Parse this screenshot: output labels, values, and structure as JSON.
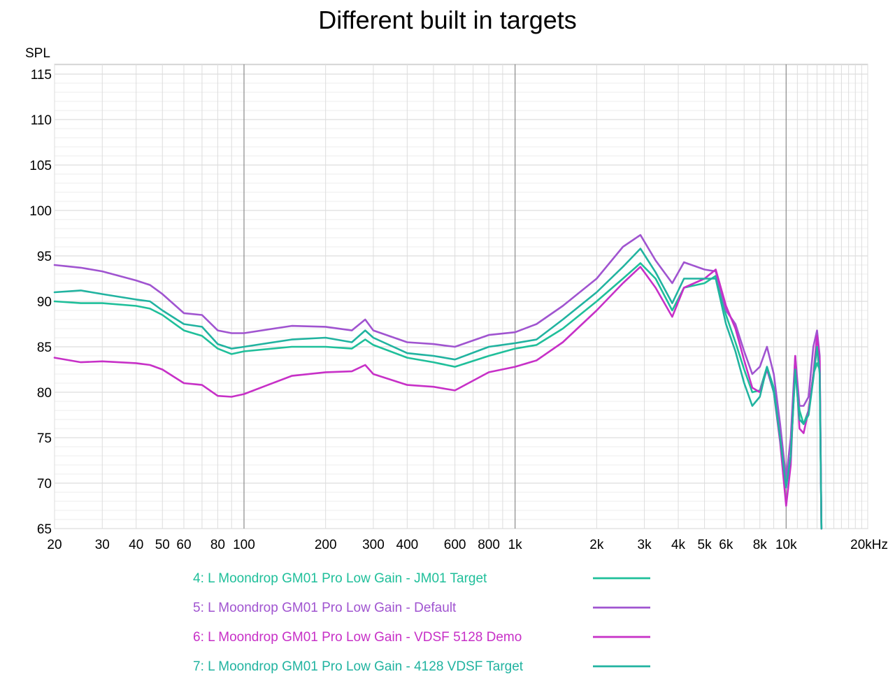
{
  "chart_data": {
    "type": "line",
    "title": "Different built in targets",
    "ylabel": "SPL",
    "xlabel": "",
    "x_scale": "log",
    "xlim": [
      20,
      20000
    ],
    "ylim": [
      65,
      116
    ],
    "grid": true,
    "y_ticks": [
      "115",
      "110",
      "105",
      "100",
      "95",
      "90",
      "85",
      "80",
      "75",
      "70",
      "65"
    ],
    "y_tick_values": [
      115,
      110,
      105,
      100,
      95,
      90,
      85,
      80,
      75,
      70,
      65
    ],
    "x_ticks": [
      "20",
      "30",
      "40",
      "50",
      "60",
      "80",
      "100",
      "200",
      "300",
      "400",
      "600",
      "800",
      "1k",
      "2k",
      "3k",
      "4k",
      "5k",
      "6k",
      "8k",
      "10k",
      "20kHz"
    ],
    "x_tick_values": [
      20,
      30,
      40,
      50,
      60,
      80,
      100,
      200,
      300,
      400,
      600,
      800,
      1000,
      2000,
      3000,
      4000,
      5000,
      6000,
      8000,
      10000,
      20000
    ],
    "legend_position": "bottom",
    "series": [
      {
        "name": "4: L Moondrop GM01 Pro Low Gain - JM01 Target",
        "color": "#1fbf9a",
        "x": [
          20,
          25,
          30,
          40,
          45,
          50,
          60,
          70,
          80,
          90,
          100,
          150,
          200,
          250,
          280,
          300,
          400,
          500,
          600,
          800,
          1000,
          1200,
          1500,
          2000,
          2500,
          2900,
          3300,
          3800,
          4200,
          5000,
          5500,
          6000,
          6500,
          7000,
          7500,
          8000,
          8500,
          9000,
          9500,
          10000,
          10400,
          10800,
          11200,
          11600,
          12100,
          12600,
          13000,
          13300,
          13500
        ],
        "y": [
          90.0,
          89.8,
          89.8,
          89.5,
          89.2,
          88.5,
          86.8,
          86.2,
          84.8,
          84.2,
          84.5,
          85.0,
          85.0,
          84.8,
          85.8,
          85.2,
          83.8,
          83.3,
          82.8,
          84.0,
          84.8,
          85.2,
          87.0,
          90.0,
          92.5,
          94.2,
          92.5,
          89.0,
          91.5,
          92.0,
          92.8,
          88.5,
          85.5,
          82.5,
          80.0,
          80.2,
          82.8,
          80.5,
          76.0,
          70.0,
          73.0,
          82.5,
          78.0,
          76.5,
          78.0,
          82.0,
          83.2,
          82.5,
          65.0
        ]
      },
      {
        "name": "5: L Moondrop GM01 Pro Low Gain - Default",
        "color": "#a054d0",
        "x": [
          20,
          25,
          30,
          40,
          45,
          50,
          60,
          70,
          80,
          90,
          100,
          150,
          200,
          250,
          280,
          300,
          400,
          500,
          600,
          800,
          1000,
          1200,
          1500,
          2000,
          2500,
          2900,
          3300,
          3800,
          4200,
          5000,
          5500,
          6000,
          6500,
          7000,
          7500,
          8000,
          8500,
          9000,
          9500,
          10000,
          10400,
          10800,
          11200,
          11600,
          12100,
          12600,
          13000,
          13300,
          13500
        ],
        "y": [
          94.0,
          93.7,
          93.3,
          92.3,
          91.8,
          90.8,
          88.7,
          88.5,
          86.8,
          86.5,
          86.5,
          87.3,
          87.2,
          86.8,
          88.0,
          86.8,
          85.5,
          85.3,
          85.0,
          86.3,
          86.6,
          87.5,
          89.5,
          92.5,
          96.0,
          97.3,
          94.5,
          92.0,
          94.3,
          93.5,
          93.3,
          89.0,
          87.5,
          84.5,
          82.0,
          82.8,
          85.0,
          82.0,
          76.5,
          70.5,
          75.0,
          84.0,
          78.5,
          78.5,
          79.5,
          85.0,
          86.8,
          84.0,
          65.0
        ]
      },
      {
        "name": "6: L Moondrop GM01 Pro Low Gain - VDSF 5128 Demo",
        "color": "#c730c7",
        "x": [
          20,
          25,
          30,
          40,
          45,
          50,
          60,
          70,
          80,
          90,
          100,
          150,
          200,
          250,
          280,
          300,
          400,
          500,
          600,
          800,
          1000,
          1200,
          1500,
          2000,
          2500,
          2900,
          3300,
          3800,
          4200,
          5000,
          5500,
          6000,
          6500,
          7000,
          7500,
          8000,
          8500,
          9000,
          9500,
          10000,
          10400,
          10800,
          11200,
          11600,
          12100,
          12600,
          13000,
          13300,
          13500
        ],
        "y": [
          83.8,
          83.3,
          83.4,
          83.2,
          83.0,
          82.5,
          81.0,
          80.8,
          79.6,
          79.5,
          79.8,
          81.8,
          82.2,
          82.3,
          83.0,
          82.0,
          80.8,
          80.6,
          80.2,
          82.2,
          82.8,
          83.5,
          85.5,
          89.0,
          92.0,
          93.8,
          91.5,
          88.3,
          91.5,
          92.5,
          93.5,
          89.5,
          87.0,
          83.5,
          80.5,
          80.0,
          82.5,
          80.0,
          74.5,
          67.5,
          72.0,
          84.0,
          76.0,
          75.5,
          78.0,
          82.0,
          86.2,
          83.5,
          65.0
        ]
      },
      {
        "name": "7: L Moondrop GM01 Pro Low Gain - 4128 VDSF Target",
        "color": "#21b3a0",
        "x": [
          20,
          25,
          30,
          40,
          45,
          50,
          60,
          70,
          80,
          90,
          100,
          150,
          200,
          250,
          280,
          300,
          400,
          500,
          600,
          800,
          1000,
          1200,
          1500,
          2000,
          2500,
          2900,
          3300,
          3800,
          4200,
          5000,
          5500,
          6000,
          6500,
          7000,
          7500,
          8000,
          8500,
          9000,
          9500,
          10000,
          10400,
          10800,
          11200,
          11600,
          12100,
          12600,
          13000,
          13300,
          13500
        ],
        "y": [
          91.0,
          91.2,
          90.8,
          90.2,
          90.0,
          89.0,
          87.5,
          87.2,
          85.3,
          84.8,
          85.0,
          85.8,
          86.0,
          85.5,
          86.8,
          86.0,
          84.3,
          84.0,
          83.6,
          85.0,
          85.4,
          85.8,
          88.0,
          91.0,
          93.8,
          95.8,
          93.2,
          89.8,
          92.5,
          92.5,
          92.5,
          87.5,
          84.5,
          81.0,
          78.5,
          79.5,
          82.8,
          80.0,
          75.0,
          69.5,
          73.0,
          82.5,
          77.0,
          76.5,
          77.5,
          81.5,
          85.0,
          82.0,
          65.0
        ]
      }
    ]
  }
}
